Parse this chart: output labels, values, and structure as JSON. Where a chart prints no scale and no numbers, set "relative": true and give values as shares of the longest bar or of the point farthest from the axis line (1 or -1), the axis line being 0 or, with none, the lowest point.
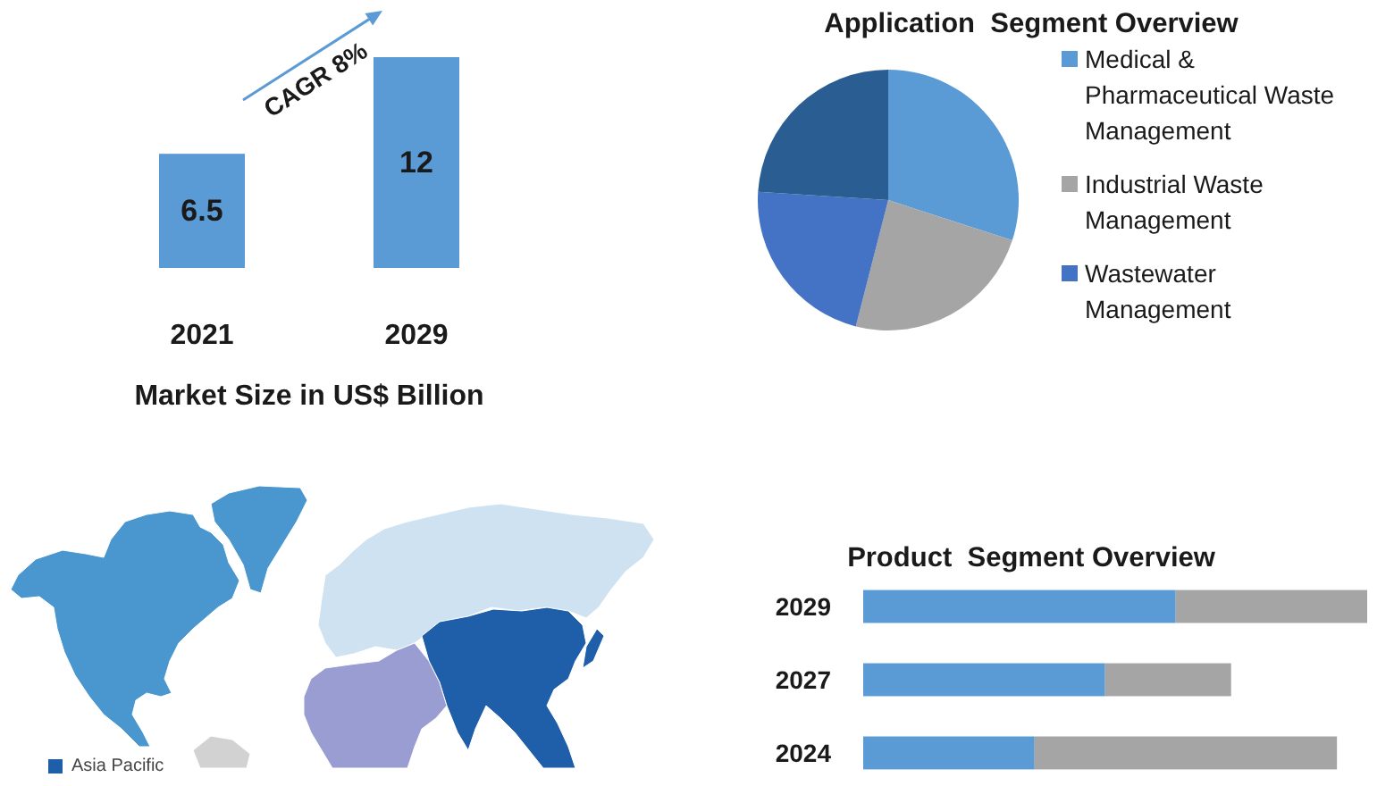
{
  "chart_data": [
    {
      "type": "bar",
      "categories": [
        "2021",
        "2029"
      ],
      "values": [
        6.5,
        12
      ],
      "color": "#5b9bd5",
      "data_labels": true,
      "xlabel": "Market Size in US$ Billion",
      "annotations": [
        "CAGR 8%"
      ]
    },
    {
      "type": "pie",
      "title": "Application  Segment Overview",
      "categories": [
        "Medical & Pharmaceutical Waste Management",
        "Industrial Waste Management",
        "Wastewater Management",
        null
      ],
      "values": [
        30,
        24,
        22,
        24
      ],
      "colors": [
        "#5b9bd5",
        "#a5a5a5",
        "#4472c4",
        "#2a5d91"
      ],
      "legend": "right"
    },
    {
      "type": "other",
      "annotations": [
        "Asia Pacific"
      ]
    },
    {
      "type": "bar",
      "title": "Product  Segment Overview",
      "orientation": "horizontal",
      "stacked": true,
      "relative": true,
      "categories": [
        "2029",
        "2027",
        "2024"
      ],
      "series": [
        {
          "color": "#5b9bd5",
          "values": [
            0.62,
            0.48,
            0.34
          ]
        },
        {
          "color": "#a5a5a5",
          "values": [
            0.38,
            0.25,
            0.6
          ]
        }
      ]
    }
  ]
}
